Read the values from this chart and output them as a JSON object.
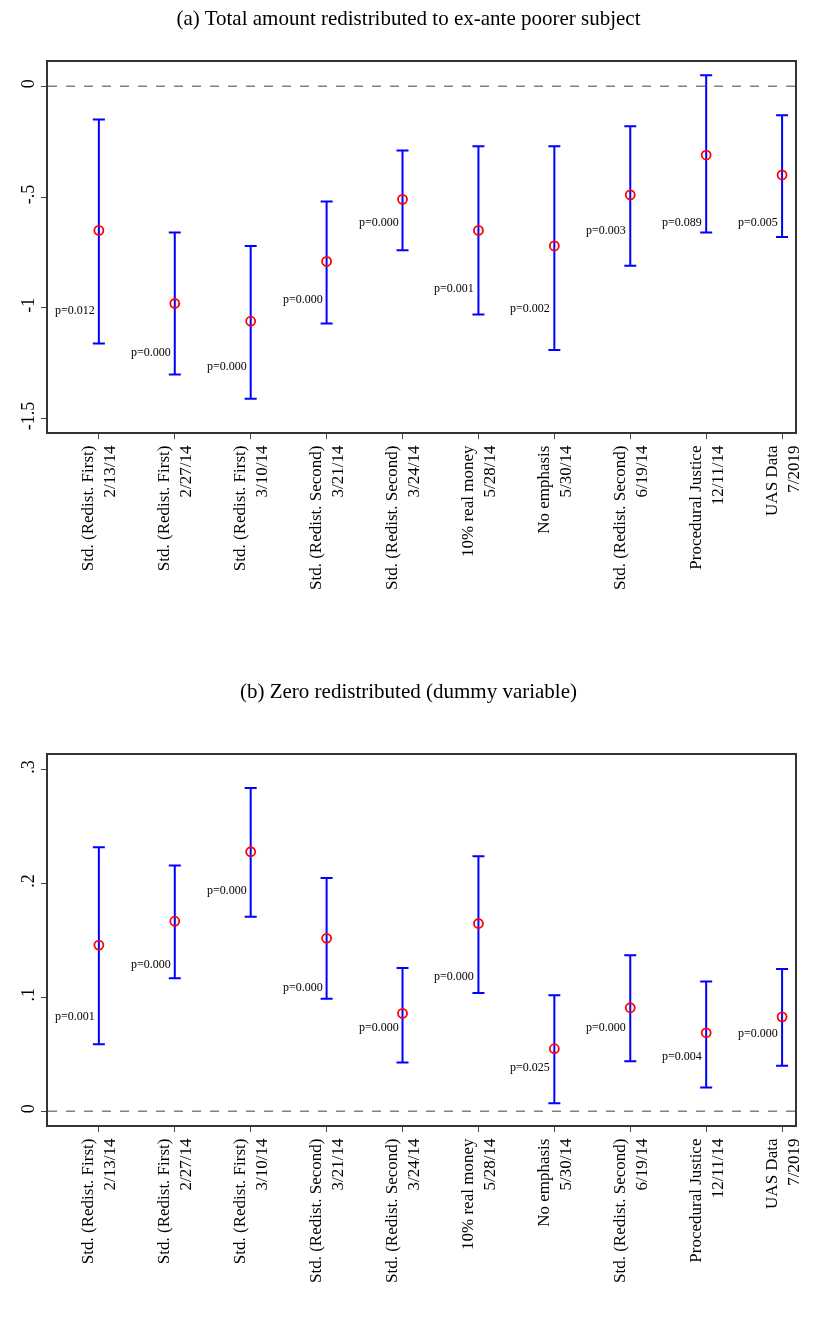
{
  "chart_data": [
    {
      "type": "scatter",
      "title": "(a) Total amount redistributed to ex-ante poorer subject",
      "categories": [
        "Std. (Redist. First)\n2/13/14",
        "Std. (Redist. First)\n2/27/14",
        "Std. (Redist. First)\n3/10/14",
        "Std. (Redist. Second)\n3/21/14",
        "Std. (Redist. Second)\n3/24/14",
        "10% real money\n5/28/14",
        "No emphasis\n5/30/14",
        "Std. (Redist. Second)\n6/19/14",
        "Procedural Justice\n12/11/14",
        "UAS Data\n7/2019"
      ],
      "series": [
        {
          "color": "#ff0000",
          "values": [
            -0.65,
            -0.98,
            -1.06,
            -0.79,
            -0.51,
            -0.65,
            -0.72,
            -0.49,
            -0.31,
            -0.4
          ],
          "errors": [
            [
              -1.16,
              -0.15
            ],
            [
              -1.3,
              -0.66
            ],
            [
              -1.41,
              -0.72
            ],
            [
              -1.07,
              -0.52
            ],
            [
              -0.74,
              -0.29
            ],
            [
              -1.03,
              -0.27
            ],
            [
              -1.19,
              -0.27
            ],
            [
              -0.81,
              -0.18
            ],
            [
              -0.66,
              0.05
            ],
            [
              -0.68,
              -0.13
            ]
          ]
        }
      ],
      "annotations": [
        {
          "text": "p=0.012",
          "x": "Std. (Redist. First)\n2/13/14",
          "y": -1.01
        },
        {
          "text": "p=0.000",
          "x": "Std. (Redist. First)\n2/27/14",
          "y": -1.2
        },
        {
          "text": "p=0.000",
          "x": "Std. (Redist. First)\n3/10/14",
          "y": -1.26
        },
        {
          "text": "p=0.000",
          "x": "Std. (Redist. Second)\n3/21/14",
          "y": -0.96
        },
        {
          "text": "p=0.000",
          "x": "Std. (Redist. Second)\n3/24/14",
          "y": -0.61
        },
        {
          "text": "p=0.001",
          "x": "10% real money\n5/28/14",
          "y": -0.91
        },
        {
          "text": "p=0.002",
          "x": "No emphasis\n5/30/14",
          "y": -1.0
        },
        {
          "text": "p=0.003",
          "x": "Std. (Redist. Second)\n6/19/14",
          "y": -0.65
        },
        {
          "text": "p=0.089",
          "x": "Procedural Justice\n12/11/14",
          "y": -0.61
        },
        {
          "text": "p=0.005",
          "x": "UAS Data\n7/2019",
          "y": -0.61
        }
      ],
      "ylim": [
        -1.56,
        0.11
      ],
      "yticks": [
        {
          "value": 0,
          "label": "0"
        },
        {
          "value": -0.5,
          "label": "-.5"
        },
        {
          "value": -1,
          "label": "-1"
        },
        {
          "value": -1.5,
          "label": "-1.5"
        }
      ],
      "ref_lines": [
        {
          "axis": "y",
          "value": 0,
          "color": "#808080",
          "line_style": "dashed"
        }
      ],
      "marker": "circle",
      "grid": false
    },
    {
      "type": "scatter",
      "title": "(b) Zero redistributed (dummy variable)",
      "categories": [
        "Std. (Redist. First)\n2/13/14",
        "Std. (Redist. First)\n2/27/14",
        "Std. (Redist. First)\n3/10/14",
        "Std. (Redist. Second)\n3/21/14",
        "Std. (Redist. Second)\n3/24/14",
        "10% real money\n5/28/14",
        "No emphasis\n5/30/14",
        "Std. (Redist. Second)\n6/19/14",
        "Procedural Justice\n12/11/14",
        "UAS Data\n7/2019"
      ],
      "series": [
        {
          "color": "#ff0000",
          "values": [
            0.146,
            0.167,
            0.228,
            0.152,
            0.086,
            0.165,
            0.055,
            0.091,
            0.069,
            0.083
          ],
          "errors": [
            [
              0.059,
              0.232
            ],
            [
              0.117,
              0.216
            ],
            [
              0.171,
              0.284
            ],
            [
              0.099,
              0.205
            ],
            [
              0.043,
              0.126
            ],
            [
              0.104,
              0.224
            ],
            [
              0.007,
              0.102
            ],
            [
              0.044,
              0.137
            ],
            [
              0.021,
              0.114
            ],
            [
              0.04,
              0.125
            ]
          ]
        }
      ],
      "annotations": [
        {
          "text": "p=0.001",
          "x": "Std. (Redist. First)\n2/13/14",
          "y": 0.084
        },
        {
          "text": "p=0.000",
          "x": "Std. (Redist. First)\n2/27/14",
          "y": 0.129
        },
        {
          "text": "p=0.000",
          "x": "Std. (Redist. First)\n3/10/14",
          "y": 0.194
        },
        {
          "text": "p=0.000",
          "x": "Std. (Redist. Second)\n3/21/14",
          "y": 0.109
        },
        {
          "text": "p=0.000",
          "x": "Std. (Redist. Second)\n3/24/14",
          "y": 0.074
        },
        {
          "text": "p=0.000",
          "x": "10% real money\n5/28/14",
          "y": 0.119
        },
        {
          "text": "p=0.025",
          "x": "No emphasis\n5/30/14",
          "y": 0.039
        },
        {
          "text": "p=0.000",
          "x": "Std. (Redist. Second)\n6/19/14",
          "y": 0.074
        },
        {
          "text": "p=0.004",
          "x": "Procedural Justice\n12/11/14",
          "y": 0.049
        },
        {
          "text": "p=0.000",
          "x": "UAS Data\n7/2019",
          "y": 0.069
        }
      ],
      "ylim": [
        -0.012,
        0.313
      ],
      "yticks": [
        {
          "value": 0,
          "label": "0"
        },
        {
          "value": 0.1,
          "label": ".1"
        },
        {
          "value": 0.2,
          "label": ".2"
        },
        {
          "value": 0.3,
          "label": ".3"
        }
      ],
      "ref_lines": [
        {
          "axis": "y",
          "value": 0,
          "color": "#808080",
          "line_style": "dashed"
        }
      ],
      "marker": "circle",
      "grid": false
    }
  ]
}
